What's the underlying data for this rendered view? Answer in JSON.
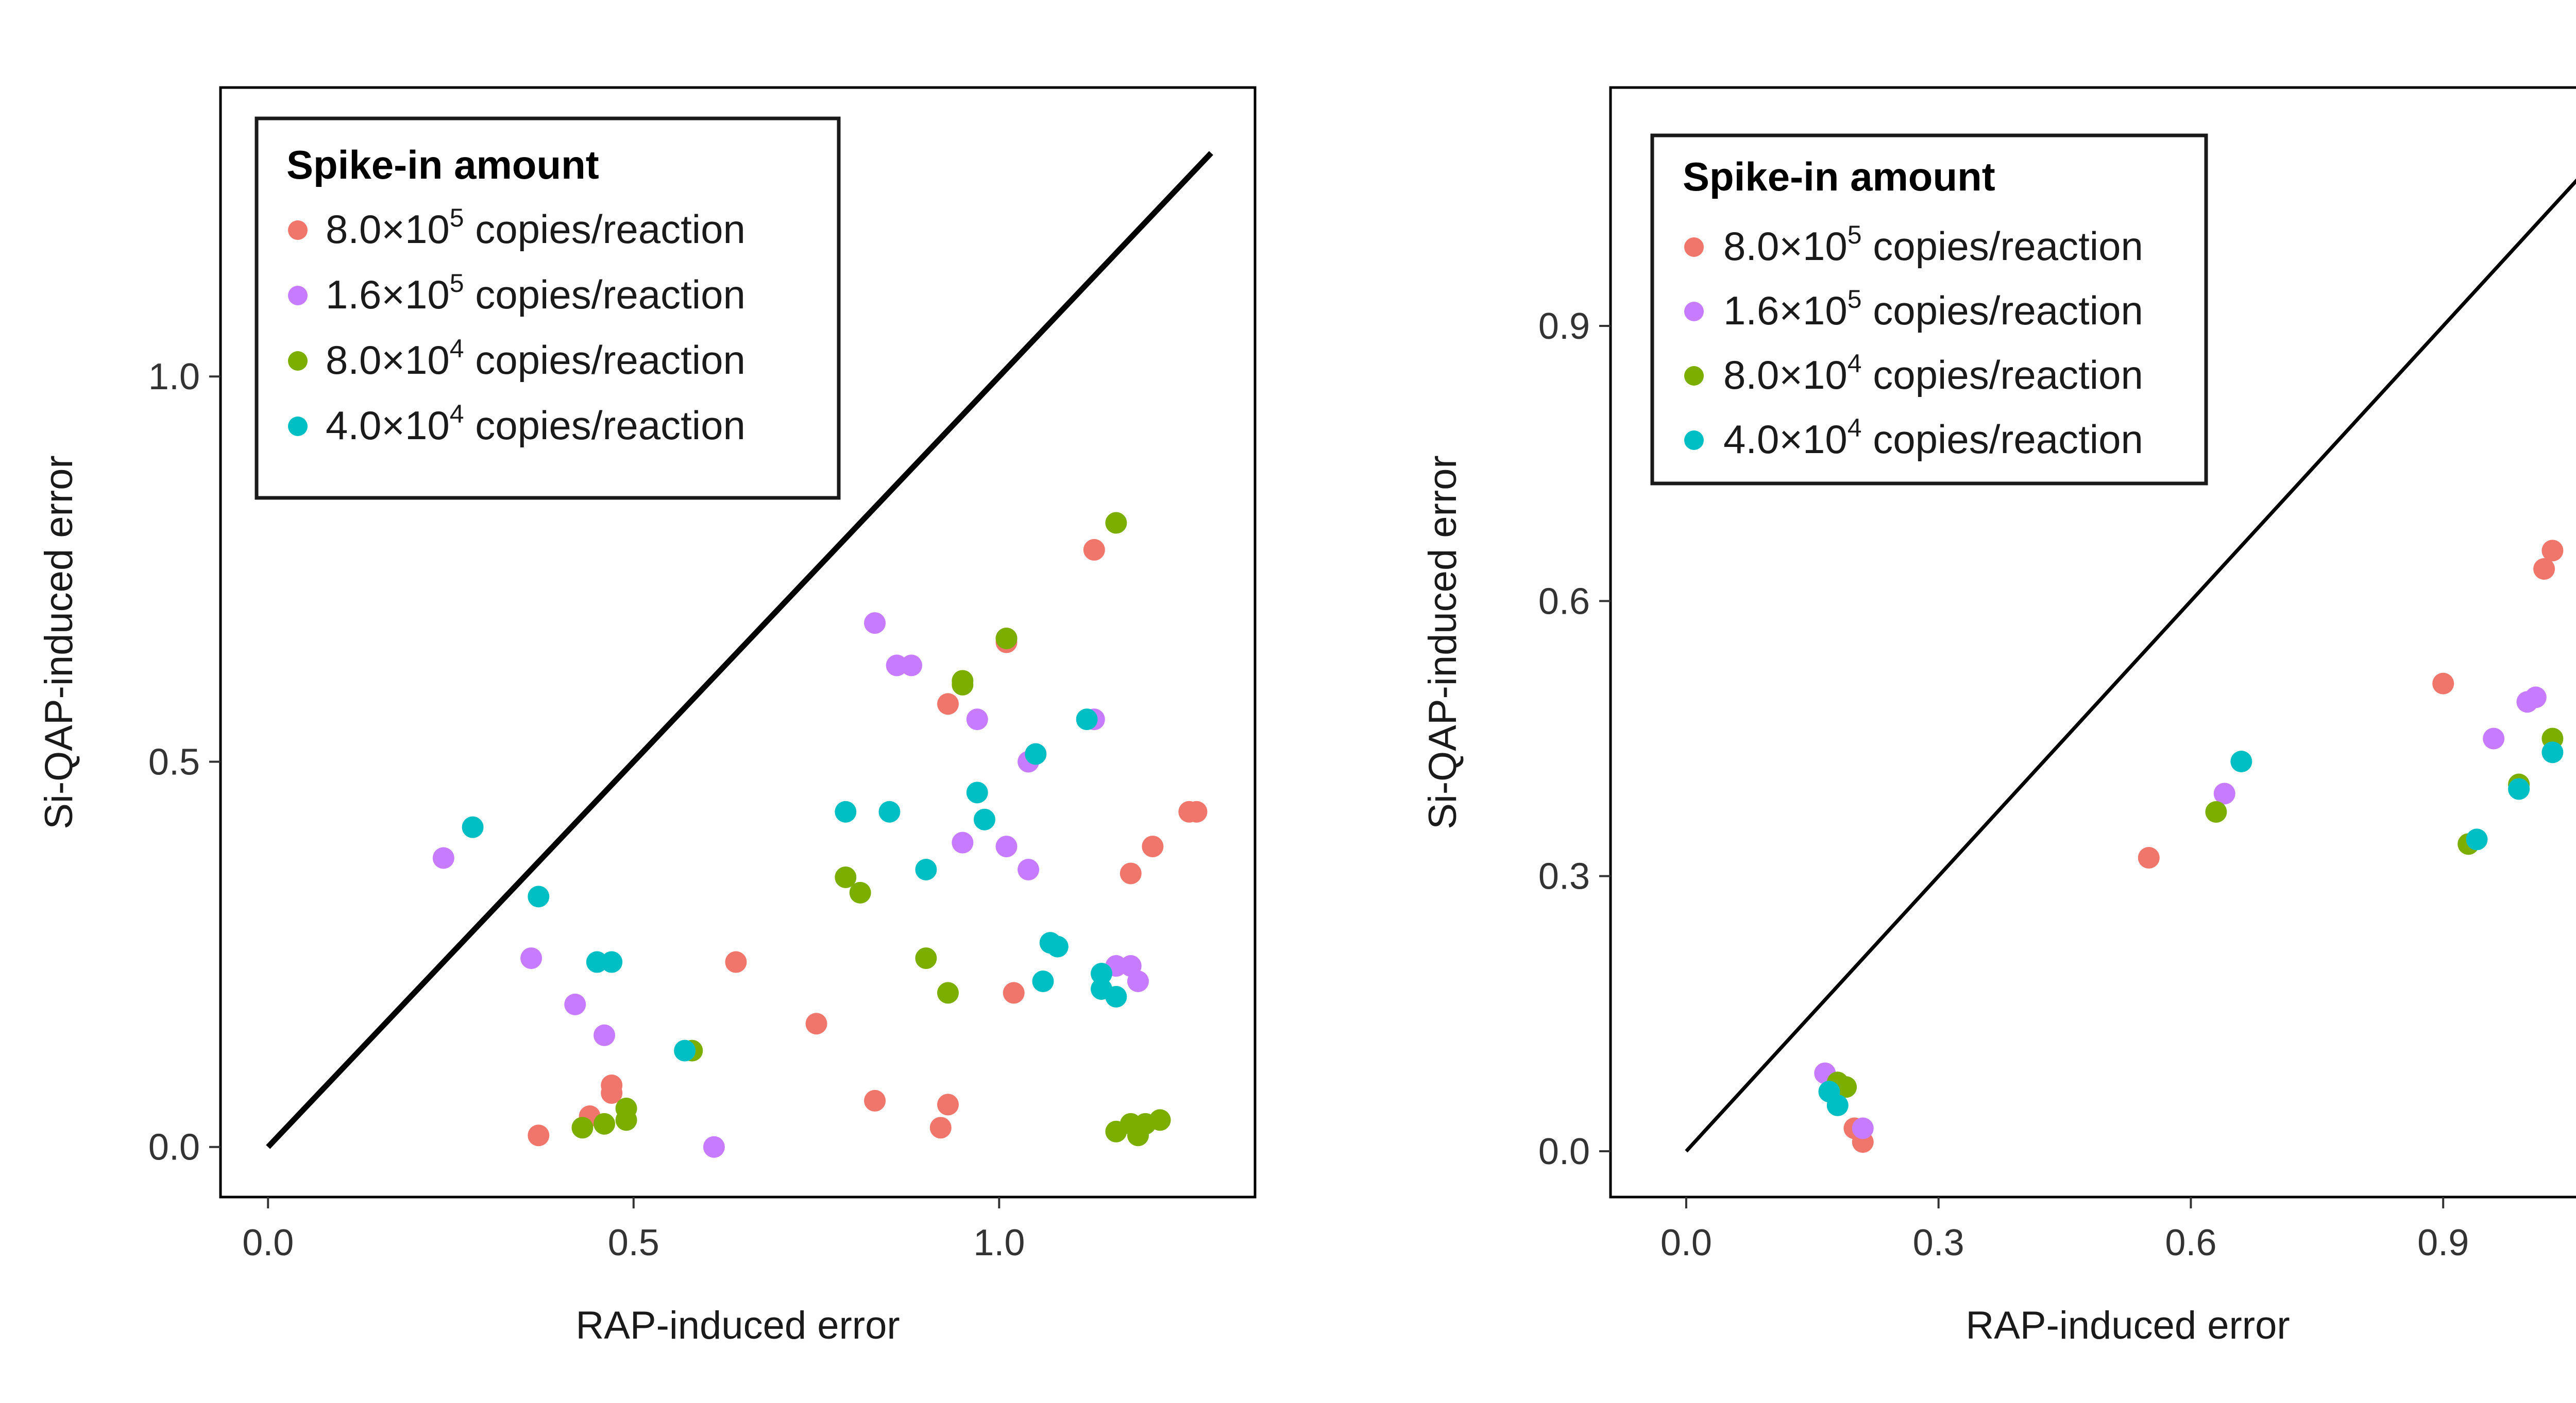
{
  "chart_data": [
    {
      "type": "scatter",
      "xlabel": "RAP-induced error",
      "ylabel": "Si-QAP-induced error",
      "xlim": [
        -0.065,
        1.35
      ],
      "ylim": [
        -0.065,
        1.375
      ],
      "xticks": [
        "0.0",
        "0.5",
        "1.0"
      ],
      "xtick_values": [
        0,
        0.5,
        1.0
      ],
      "yticks": [
        "0.0",
        "0.5",
        "1.0"
      ],
      "ytick_values": [
        0,
        0.5,
        1.0
      ],
      "identity_line": {
        "from": [
          0,
          0
        ],
        "to": [
          1.29,
          1.29
        ],
        "color": "#000000"
      },
      "grid": false,
      "legend": {
        "title": "Spike-in amount",
        "placement": "top-left",
        "entries": [
          {
            "base": "8.0×10",
            "exp": "5",
            "suffix": " copies/reaction",
            "color": "#F0766B"
          },
          {
            "base": "1.6×10",
            "exp": "5",
            "suffix": " copies/reaction",
            "color": "#C77CFF"
          },
          {
            "base": "8.0×10",
            "exp": "4",
            "suffix": " copies/reaction",
            "color": "#7CAE00"
          },
          {
            "base": "4.0×10",
            "exp": "4",
            "suffix": " copies/reaction",
            "color": "#00BFC4"
          }
        ]
      },
      "series": [
        {
          "color": "#F0766B",
          "points": [
            [
              0.37,
              0.015
            ],
            [
              0.44,
              0.04
            ],
            [
              0.47,
              0.07
            ],
            [
              0.47,
              0.08
            ],
            [
              0.64,
              0.24
            ],
            [
              0.75,
              0.16
            ],
            [
              0.83,
              0.06
            ],
            [
              0.92,
              0.025
            ],
            [
              0.93,
              0.055
            ],
            [
              0.93,
              0.575
            ],
            [
              1.01,
              0.655
            ],
            [
              1.01,
              0.66
            ],
            [
              1.02,
              0.2
            ],
            [
              1.13,
              0.775
            ],
            [
              1.18,
              0.355
            ],
            [
              1.21,
              0.39
            ],
            [
              1.26,
              0.435
            ],
            [
              1.27,
              0.435
            ]
          ]
        },
        {
          "color": "#C77CFF",
          "points": [
            [
              0.24,
              0.375
            ],
            [
              0.36,
              0.245
            ],
            [
              0.42,
              0.185
            ],
            [
              0.46,
              0.145
            ],
            [
              0.61,
              0.0
            ],
            [
              0.83,
              0.68
            ],
            [
              0.86,
              0.625
            ],
            [
              0.88,
              0.625
            ],
            [
              0.95,
              0.395
            ],
            [
              0.97,
              0.555
            ],
            [
              1.01,
              0.39
            ],
            [
              1.04,
              0.36
            ],
            [
              1.04,
              0.5
            ],
            [
              1.05,
              0.51
            ],
            [
              1.13,
              0.555
            ],
            [
              1.16,
              0.235
            ],
            [
              1.18,
              0.235
            ],
            [
              1.19,
              0.215
            ]
          ]
        },
        {
          "color": "#7CAE00",
          "points": [
            [
              0.43,
              0.025
            ],
            [
              0.46,
              0.03
            ],
            [
              0.49,
              0.035
            ],
            [
              0.49,
              0.05
            ],
            [
              0.58,
              0.125
            ],
            [
              0.79,
              0.35
            ],
            [
              0.81,
              0.33
            ],
            [
              0.9,
              0.245
            ],
            [
              0.93,
              0.2
            ],
            [
              0.95,
              0.6
            ],
            [
              0.95,
              0.605
            ],
            [
              1.01,
              0.66
            ],
            [
              1.16,
              0.81
            ],
            [
              1.16,
              0.02
            ],
            [
              1.18,
              0.03
            ],
            [
              1.19,
              0.015
            ],
            [
              1.2,
              0.03
            ],
            [
              1.22,
              0.035
            ]
          ]
        },
        {
          "color": "#00BFC4",
          "points": [
            [
              0.28,
              0.415
            ],
            [
              0.37,
              0.325
            ],
            [
              0.45,
              0.24
            ],
            [
              0.47,
              0.24
            ],
            [
              0.57,
              0.125
            ],
            [
              0.79,
              0.435
            ],
            [
              0.85,
              0.435
            ],
            [
              0.9,
              0.36
            ],
            [
              0.97,
              0.46
            ],
            [
              0.98,
              0.425
            ],
            [
              1.05,
              0.51
            ],
            [
              1.06,
              0.215
            ],
            [
              1.07,
              0.265
            ],
            [
              1.08,
              0.26
            ],
            [
              1.12,
              0.555
            ],
            [
              1.14,
              0.205
            ],
            [
              1.14,
              0.225
            ],
            [
              1.16,
              0.195
            ]
          ]
        }
      ]
    },
    {
      "type": "scatter",
      "xlabel": "RAP-induced error",
      "ylabel": "Si-QAP-induced error",
      "xlim": [
        -0.09,
        1.14
      ],
      "ylim": [
        -0.05,
        1.16
      ],
      "xticks": [
        "0.0",
        "0.3",
        "0.6",
        "0.9"
      ],
      "xtick_values": [
        0,
        0.3,
        0.6,
        0.9
      ],
      "yticks": [
        "0.0",
        "0.3",
        "0.6",
        "0.9"
      ],
      "ytick_values": [
        0,
        0.3,
        0.6,
        0.9
      ],
      "identity_line": {
        "from": [
          0,
          0
        ],
        "to": [
          1.09,
          1.09
        ],
        "color": "#000000"
      },
      "grid": false,
      "legend": {
        "title": "Spike-in amount",
        "placement": "top-left",
        "entries": [
          {
            "base": "8.0×10",
            "exp": "5",
            "suffix": " copies/reaction",
            "color": "#F0766B"
          },
          {
            "base": "1.6×10",
            "exp": "5",
            "suffix": " copies/reaction",
            "color": "#C77CFF"
          },
          {
            "base": "8.0×10",
            "exp": "4",
            "suffix": " copies/reaction",
            "color": "#7CAE00"
          },
          {
            "base": "4.0×10",
            "exp": "4",
            "suffix": " copies/reaction",
            "color": "#00BFC4"
          }
        ]
      },
      "series": [
        {
          "color": "#F0766B",
          "points": [
            [
              0.2,
              0.025
            ],
            [
              0.21,
              0.01
            ],
            [
              0.55,
              0.32
            ],
            [
              0.9,
              0.51
            ],
            [
              1.02,
              0.635
            ],
            [
              1.03,
              0.655
            ]
          ]
        },
        {
          "color": "#C77CFF",
          "points": [
            [
              0.165,
              0.085
            ],
            [
              0.21,
              0.025
            ],
            [
              0.64,
              0.39
            ],
            [
              0.96,
              0.45
            ],
            [
              1.0,
              0.49
            ],
            [
              1.01,
              0.495
            ]
          ]
        },
        {
          "color": "#7CAE00",
          "points": [
            [
              0.18,
              0.075
            ],
            [
              0.19,
              0.07
            ],
            [
              0.63,
              0.37
            ],
            [
              0.93,
              0.335
            ],
            [
              0.99,
              0.4
            ],
            [
              1.03,
              0.45
            ]
          ]
        },
        {
          "color": "#00BFC4",
          "points": [
            [
              0.17,
              0.065
            ],
            [
              0.18,
              0.05
            ],
            [
              0.66,
              0.425
            ],
            [
              0.94,
              0.34
            ],
            [
              0.99,
              0.395
            ],
            [
              1.03,
              0.435
            ]
          ]
        }
      ]
    }
  ]
}
